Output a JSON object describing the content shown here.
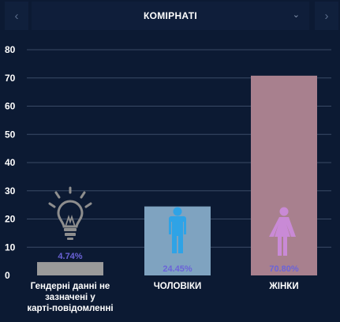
{
  "header": {
    "title": "КОМІРНАТІ",
    "prev_icon": "chevron-left-icon",
    "next_icon": "chevron-right-icon",
    "dropdown_icon": "chevron-down-icon"
  },
  "chart_data": {
    "type": "bar",
    "categories": [
      "Гендерні данні не зазначені у карті-повідомленні",
      "ЧОЛОВІКИ",
      "ЖІНКИ"
    ],
    "category_lines": [
      [
        "Гендерні данні не",
        "зазначені у",
        "карті-повідомленні"
      ],
      [
        "ЧОЛОВІКИ"
      ],
      [
        "ЖІНКИ"
      ]
    ],
    "values": [
      4.74,
      24.45,
      70.8
    ],
    "value_labels": [
      "4.74%",
      "24.45%",
      "70.80%"
    ],
    "icons": [
      "lightbulb-icon",
      "male-person-icon",
      "female-person-icon"
    ],
    "bar_colors": [
      "#9a9a9a",
      "#7fa3c0",
      "#a8808e"
    ],
    "icon_colors": [
      "#8e8e8e",
      "#2fa3e6",
      "#c98ad6"
    ],
    "value_label_color": "#6b63d8",
    "y_ticks": [
      0,
      10,
      20,
      30,
      40,
      50,
      60,
      70,
      80
    ],
    "ylim": [
      0,
      80
    ],
    "grid": true
  }
}
